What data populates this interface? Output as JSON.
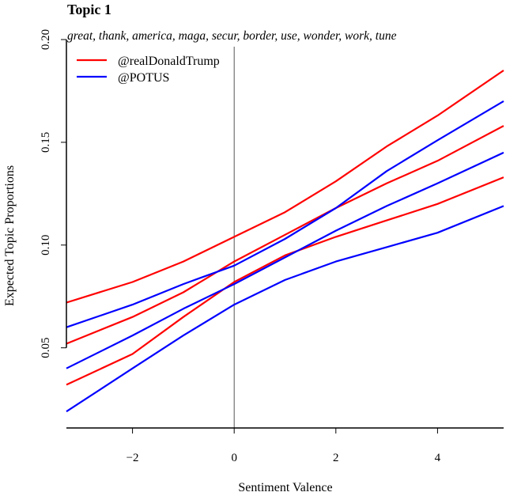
{
  "chart_data": {
    "type": "line",
    "title": "Topic 1",
    "subtitle": "great, thank, america, maga, secur, border, use, wonder, work, tune",
    "xlabel": "Sentiment Valence",
    "ylabel": "Expected Topic Proportions",
    "xlim": [
      -3.3,
      5.3
    ],
    "ylim": [
      0.011,
      0.205
    ],
    "x_ticks": [
      -2,
      0,
      2,
      4
    ],
    "x_tick_labels": [
      "−2",
      "0",
      "2",
      "4"
    ],
    "y_ticks": [
      0.05,
      0.1,
      0.15,
      0.2
    ],
    "y_tick_labels": [
      "0.05",
      "0.10",
      "0.15",
      "0.20"
    ],
    "vline_x": 0,
    "legend_position": "top-left",
    "x": [
      -3.3,
      -2,
      -1,
      0,
      1,
      2,
      3,
      4,
      5.3
    ],
    "series": [
      {
        "name": "@realDonaldTrump",
        "color": "#ff0000",
        "estimate": [
          0.052,
          0.065,
          0.077,
          0.092,
          0.105,
          0.118,
          0.13,
          0.141,
          0.158
        ],
        "upper": [
          0.072,
          0.082,
          0.092,
          0.104,
          0.116,
          0.131,
          0.148,
          0.163,
          0.185
        ],
        "lower": [
          0.032,
          0.047,
          0.065,
          0.082,
          0.095,
          0.104,
          0.112,
          0.12,
          0.133
        ]
      },
      {
        "name": "@POTUS",
        "color": "#0000ff",
        "estimate": [
          0.04,
          0.056,
          0.069,
          0.081,
          0.094,
          0.107,
          0.119,
          0.13,
          0.145
        ],
        "upper": [
          0.06,
          0.071,
          0.081,
          0.09,
          0.103,
          0.118,
          0.136,
          0.151,
          0.17
        ],
        "lower": [
          0.019,
          0.04,
          0.056,
          0.071,
          0.083,
          0.092,
          0.099,
          0.106,
          0.119
        ]
      }
    ]
  }
}
